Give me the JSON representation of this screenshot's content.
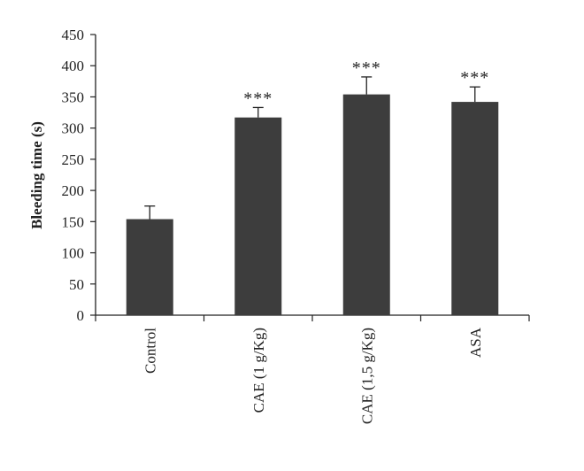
{
  "chart_data": {
    "type": "bar",
    "title": "",
    "xlabel": "",
    "ylabel": "Bleeding time (s)",
    "ylim": [
      0,
      450
    ],
    "yticks": [
      0,
      50,
      100,
      150,
      200,
      250,
      300,
      350,
      400,
      450
    ],
    "categories": [
      "Control",
      "CAE (1 g/Kg)",
      "CAE (1,5 g/Kg)",
      "ASA"
    ],
    "values": [
      154,
      317,
      354,
      342
    ],
    "errors": [
      21,
      16,
      28,
      24
    ],
    "annotations": [
      "",
      "***",
      "***",
      "***"
    ],
    "grid": false,
    "legend": "none",
    "colors": {
      "bar": "#3d3d3d",
      "axis": "#222222"
    }
  }
}
